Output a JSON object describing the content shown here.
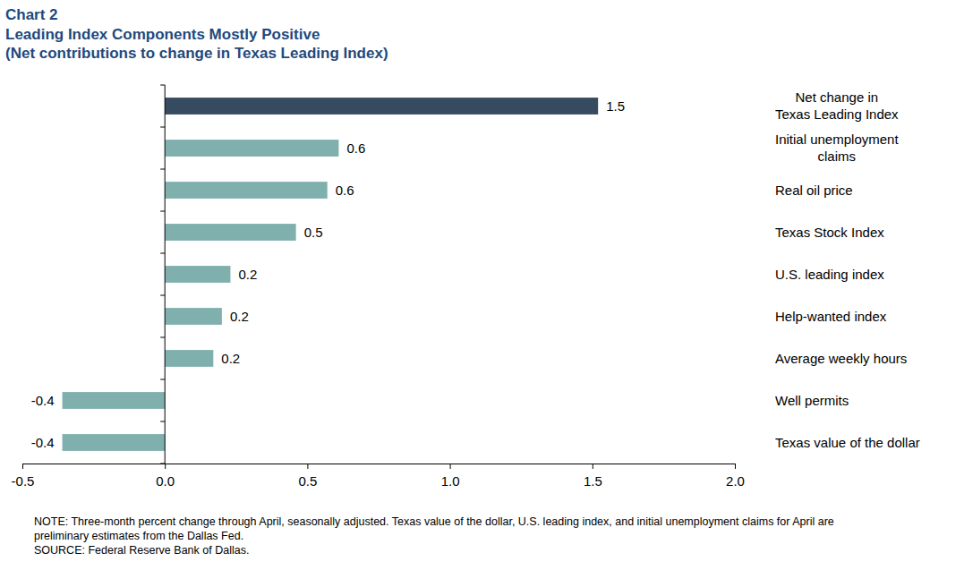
{
  "chart_data": {
    "type": "bar",
    "orientation": "horizontal",
    "title": "Chart 2",
    "subtitle": [
      "Leading Index Components Mostly Positive",
      "(Net contributions to change in Texas Leading Index)"
    ],
    "categories": [
      "Net change in\nTexas Leading Index",
      "Initial unemployment\nclaims",
      "Real oil price",
      "Texas Stock Index",
      "U.S. leading index",
      "Help-wanted index",
      "Average weekly hours",
      "Well permits",
      "Texas value of the dollar"
    ],
    "values": [
      1.52,
      0.61,
      0.57,
      0.46,
      0.23,
      0.2,
      0.17,
      -0.36,
      -0.36
    ],
    "value_labels": [
      "1.5",
      "0.6",
      "0.6",
      "0.5",
      "0.2",
      "0.2",
      "0.2",
      "-0.4",
      "-0.4"
    ],
    "colors": [
      "#364b5f",
      "#7fb0ad",
      "#7fb0ad",
      "#7fb0ad",
      "#7fb0ad",
      "#7fb0ad",
      "#7fb0ad",
      "#7fb0ad",
      "#7fb0ad"
    ],
    "data_labels": true,
    "grid": false,
    "xlim": [
      -0.5,
      2.0
    ],
    "xticks": [
      -0.5,
      {
        "value": 0,
        "label": "0.0"
      },
      0.5,
      {
        "value": 1,
        "label": "1.0"
      },
      1.5,
      {
        "value": 2,
        "label": "2.0"
      }
    ],
    "notes": [
      "NOTE: Three-month percent change through April, seasonally adjusted. Texas value of the dollar, U.S. leading index, and initial unemployment claims for April are",
      "preliminary estimates from the Dallas Fed.",
      "SOURCE: Federal Reserve Bank of Dallas."
    ]
  }
}
